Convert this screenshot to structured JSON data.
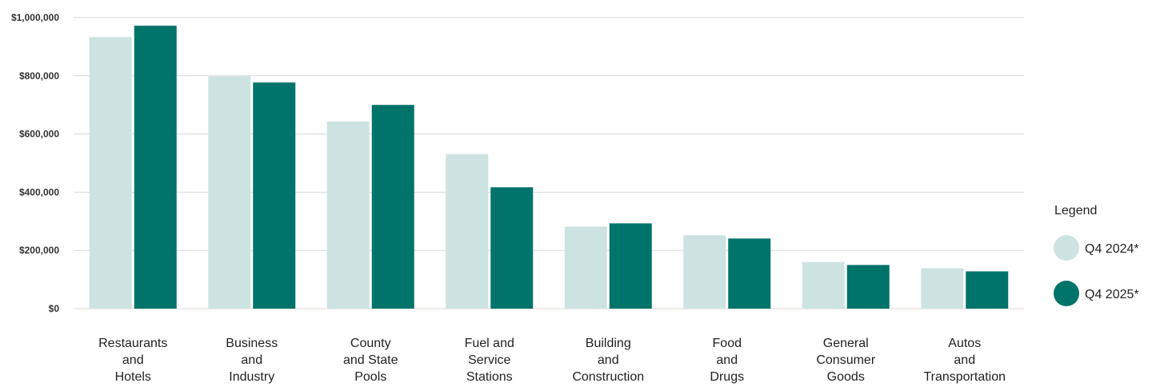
{
  "chart_data": {
    "type": "bar",
    "categories": [
      [
        "Restaurants",
        "and",
        "Hotels"
      ],
      [
        "Business",
        "and",
        "Industry"
      ],
      [
        "County",
        "and State",
        "Pools"
      ],
      [
        "Fuel and",
        "Service",
        "Stations"
      ],
      [
        "Building",
        "and",
        "Construction"
      ],
      [
        "Food",
        "and",
        "Drugs"
      ],
      [
        "General",
        "Consumer",
        "Goods"
      ],
      [
        "Autos",
        "and",
        "Transportation"
      ]
    ],
    "series": [
      {
        "name": "Q4 2024*",
        "color": "#cde3e1",
        "values": [
          933000,
          798000,
          643000,
          531000,
          282000,
          252000,
          160000,
          139000
        ]
      },
      {
        "name": "Q4 2025*",
        "color": "#00736a",
        "values": [
          972000,
          777000,
          700000,
          417000,
          293000,
          241000,
          150000,
          128000
        ]
      }
    ],
    "ylim": [
      0,
      1000000
    ],
    "yticks": [
      0,
      200000,
      400000,
      600000,
      800000,
      1000000
    ],
    "ytick_labels": [
      "$0",
      "$200,000",
      "$400,000",
      "$600,000",
      "$800,000",
      "$1,000,000"
    ],
    "grid": true,
    "legend_title": "Legend",
    "legend_position": "right"
  }
}
